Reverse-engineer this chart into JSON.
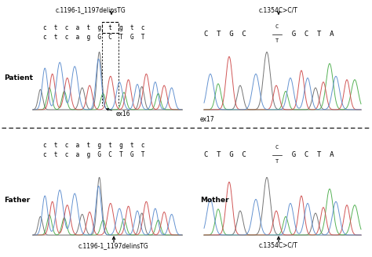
{
  "bg_color": "#ffffff",
  "colors": {
    "blue": "#5588cc",
    "red": "#cc4444",
    "green": "#44aa44",
    "black": "#222222"
  },
  "panels": {
    "patient_left": {
      "seq_top": "c  t  c  a  t  g  t  g  t  c",
      "seq_bot": "c  t  c  a  g  G  C  T  G  T",
      "annotation_top": "c.1196-1_1197delinsTG"
    },
    "patient_right": {
      "seq": "CTGC",
      "seq2": "GCTA",
      "ct_top": "C",
      "ct_bot": "T",
      "annotation_top": "c.1354C>C/T",
      "ex_label": "ex17"
    },
    "father_left": {
      "seq_top": "c  t  c  a  t  g  t  g  t  c",
      "seq_bot": "c  t  c  a  g  G  C  T  G  T",
      "annotation_bot": "c.1196-1_1197delinsTG"
    },
    "mother_right": {
      "seq": "CTGC",
      "seq2": "GCTA",
      "ct_top": "C",
      "ct_bot": "T",
      "annotation_bot": "c.1354C>C/T"
    }
  },
  "label_patient": "Patient",
  "label_father": "Father",
  "label_mother": "Mother",
  "label_ex16": "ex16",
  "label_ex17": "ex17"
}
